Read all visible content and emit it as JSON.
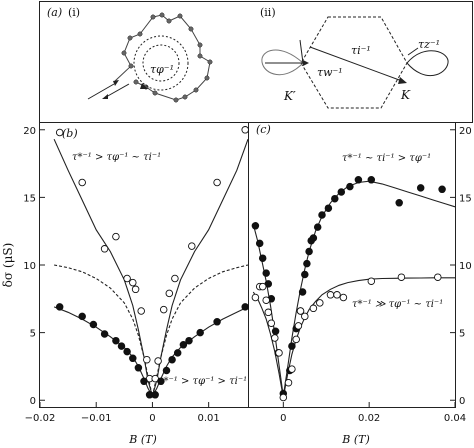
{
  "figure": {
    "panel_a_label": "(a)",
    "panel_a_i": "(i)",
    "panel_a_ii": "(ii)",
    "panel_b_label": "(b)",
    "panel_c_label": "(c)",
    "tau_phi_label": "τφ⁻¹",
    "tau_w_label": "τw⁻¹",
    "tau_i_label": "τi⁻¹",
    "tau_z_label": "τz⁻¹",
    "K_prime_label": "K′",
    "K_label": "K",
    "ylabel": "δσ (μS)",
    "xlabel_b": "B (T)",
    "xlabel_c": "B (T)",
    "b_top_annotation": "τ*⁻¹ > τφ⁻¹ ~ τi⁻¹",
    "b_bottom_annotation": "τ*⁻¹ > τφ⁻¹ > τi⁻¹",
    "c_top_annotation": "τ*⁻¹ ~ τi⁻¹ > τφ⁻¹",
    "c_bottom_annotation": "τ*⁻¹ ≫ τφ⁻¹ ~ τi⁻¹"
  },
  "chart_data": [
    {
      "panel": "(b)",
      "type": "scatter",
      "xlabel": "B (T)",
      "ylabel": "δσ (μS)",
      "xlim": [
        -0.02,
        0.017
      ],
      "ylim": [
        -0.5,
        20.5
      ],
      "xticks": [
        -0.02,
        -0.01,
        0,
        0.01
      ],
      "xtick_labels": [
        "−0.02",
        "−0.01",
        "0",
        "0.01"
      ],
      "yticks": [
        0,
        5,
        10,
        15,
        20
      ],
      "ytick_labels": [
        "0",
        "5",
        "10",
        "15",
        "20"
      ],
      "series": [
        {
          "marker": "open-circle",
          "points": [
            [
              -0.0165,
              19.8
            ],
            [
              -0.0125,
              16.1
            ],
            [
              -0.0085,
              11.2
            ],
            [
              -0.0065,
              12.1
            ],
            [
              -0.0045,
              9.0
            ],
            [
              -0.0035,
              8.7
            ],
            [
              -0.003,
              8.2
            ],
            [
              -0.002,
              6.6
            ],
            [
              -0.001,
              3.0
            ],
            [
              -0.0005,
              1.6
            ],
            [
              0.0005,
              1.6
            ],
            [
              0.001,
              2.9
            ],
            [
              0.002,
              6.7
            ],
            [
              0.003,
              7.9
            ],
            [
              0.004,
              9.0
            ],
            [
              0.007,
              11.4
            ],
            [
              0.0115,
              16.1
            ],
            [
              0.0165,
              20.0
            ]
          ]
        },
        {
          "marker": "filled-circle",
          "points": [
            [
              -0.0165,
              6.9
            ],
            [
              -0.0125,
              6.2
            ],
            [
              -0.0105,
              5.6
            ],
            [
              -0.0085,
              4.9
            ],
            [
              -0.0065,
              4.4
            ],
            [
              -0.0055,
              4.0
            ],
            [
              -0.0045,
              3.6
            ],
            [
              -0.0035,
              3.1
            ],
            [
              -0.0025,
              2.4
            ],
            [
              -0.0015,
              1.4
            ],
            [
              -0.0005,
              0.4
            ],
            [
              0.0005,
              0.4
            ],
            [
              0.0015,
              1.4
            ],
            [
              0.0025,
              2.2
            ],
            [
              0.0035,
              3.0
            ],
            [
              0.0045,
              3.5
            ],
            [
              0.0055,
              4.1
            ],
            [
              0.0065,
              4.4
            ],
            [
              0.0085,
              5.0
            ],
            [
              0.0115,
              5.8
            ],
            [
              0.0165,
              6.9
            ]
          ]
        }
      ],
      "curves": [
        {
          "style": "solid",
          "x": [
            -0.0175,
            -0.015,
            -0.0125,
            -0.01,
            -0.0075,
            -0.005,
            -0.0035,
            -0.0025,
            -0.0015,
            -0.0008,
            0,
            0.0008,
            0.0015,
            0.0025,
            0.0035,
            0.005,
            0.0075,
            0.01,
            0.0125,
            0.015,
            0.017
          ],
          "y": [
            19.3,
            17.0,
            14.8,
            12.6,
            11.0,
            8.9,
            7.0,
            5.2,
            3.2,
            1.5,
            0.3,
            1.5,
            3.2,
            5.2,
            7.0,
            8.9,
            11.0,
            12.6,
            14.8,
            17.0,
            19.3
          ]
        },
        {
          "style": "solid",
          "x": [
            -0.0175,
            -0.015,
            -0.0125,
            -0.01,
            -0.0075,
            -0.005,
            -0.0035,
            -0.0025,
            -0.0015,
            -0.0008,
            0,
            0.0008,
            0.0015,
            0.0025,
            0.0035,
            0.005,
            0.0075,
            0.01,
            0.0125,
            0.015,
            0.017
          ],
          "y": [
            6.9,
            6.5,
            6.0,
            5.4,
            4.7,
            3.9,
            3.2,
            2.5,
            1.6,
            0.9,
            0.3,
            0.9,
            1.6,
            2.5,
            3.2,
            3.9,
            4.7,
            5.4,
            6.0,
            6.5,
            6.9
          ]
        },
        {
          "style": "dashed",
          "x": [
            -0.0175,
            -0.015,
            -0.0125,
            -0.01,
            -0.0075,
            -0.005,
            -0.0035,
            -0.0025,
            -0.0015,
            -0.0008,
            0,
            0.0008,
            0.0015,
            0.0025,
            0.0035,
            0.005,
            0.0075,
            0.01,
            0.0125,
            0.015,
            0.017
          ],
          "y": [
            10.0,
            9.8,
            9.5,
            9.0,
            8.3,
            7.2,
            6.0,
            4.8,
            3.2,
            1.8,
            0.3,
            1.8,
            3.2,
            4.8,
            6.0,
            7.2,
            8.3,
            9.0,
            9.5,
            9.8,
            10.0
          ]
        }
      ]
    },
    {
      "panel": "(c)",
      "type": "scatter",
      "xlabel": "B (T)",
      "ylabel": "δσ (μS)",
      "xlim": [
        -0.008,
        0.04
      ],
      "ylim": [
        -0.5,
        20.5
      ],
      "xticks": [
        0,
        0.02,
        0.04
      ],
      "xtick_labels": [
        "0",
        "0.02",
        "0.04"
      ],
      "yticks": [
        0,
        5,
        10,
        15,
        20
      ],
      "ytick_labels": [
        "0",
        "5",
        "10",
        "15",
        "20"
      ],
      "series": [
        {
          "marker": "filled-circle",
          "points": [
            [
              -0.0065,
              12.9
            ],
            [
              -0.0055,
              11.6
            ],
            [
              -0.0048,
              10.5
            ],
            [
              -0.004,
              9.4
            ],
            [
              -0.0035,
              8.6
            ],
            [
              -0.0028,
              7.5
            ],
            [
              -0.0018,
              5.1
            ],
            [
              -0.0012,
              3.5
            ],
            [
              0.0,
              0.5
            ],
            [
              0.0015,
              2.2
            ],
            [
              0.002,
              4.0
            ],
            [
              0.003,
              5.3
            ],
            [
              0.004,
              6.6
            ],
            [
              0.0045,
              8.0
            ],
            [
              0.005,
              9.3
            ],
            [
              0.0055,
              10.1
            ],
            [
              0.006,
              11.0
            ],
            [
              0.0065,
              11.8
            ],
            [
              0.007,
              12.0
            ],
            [
              0.008,
              12.8
            ],
            [
              0.009,
              13.7
            ],
            [
              0.0105,
              14.2
            ],
            [
              0.012,
              14.9
            ],
            [
              0.0135,
              15.4
            ],
            [
              0.0155,
              15.8
            ],
            [
              0.0175,
              16.3
            ],
            [
              0.0205,
              16.3
            ],
            [
              0.027,
              14.6
            ],
            [
              0.032,
              15.7
            ],
            [
              0.037,
              15.6
            ]
          ]
        },
        {
          "marker": "open-circle",
          "points": [
            [
              -0.0065,
              7.6
            ],
            [
              -0.0055,
              8.4
            ],
            [
              -0.0048,
              8.4
            ],
            [
              -0.004,
              7.4
            ],
            [
              -0.0035,
              6.5
            ],
            [
              -0.0028,
              5.7
            ],
            [
              -0.002,
              4.6
            ],
            [
              -0.001,
              3.5
            ],
            [
              0.0,
              0.2
            ],
            [
              0.0012,
              1.3
            ],
            [
              0.002,
              2.3
            ],
            [
              0.003,
              4.5
            ],
            [
              0.0035,
              5.5
            ],
            [
              0.004,
              6.6
            ],
            [
              0.005,
              6.2
            ],
            [
              0.007,
              6.8
            ],
            [
              0.0085,
              7.2
            ],
            [
              0.011,
              7.8
            ],
            [
              0.0125,
              7.8
            ],
            [
              0.014,
              7.6
            ],
            [
              0.0205,
              8.8
            ],
            [
              0.0275,
              9.1
            ],
            [
              0.036,
              9.1
            ]
          ]
        }
      ],
      "curves": [
        {
          "style": "solid",
          "x": [
            -0.007,
            -0.006,
            -0.005,
            -0.004,
            -0.003,
            -0.002,
            -0.001,
            0,
            0.001,
            0.002,
            0.003,
            0.004,
            0.005,
            0.006,
            0.0075,
            0.009,
            0.011,
            0.013,
            0.015,
            0.0175,
            0.02,
            0.023,
            0.026,
            0.029,
            0.032,
            0.035,
            0.038,
            0.04
          ],
          "y": [
            13.0,
            11.8,
            10.3,
            8.8,
            7.0,
            4.9,
            2.6,
            0.3,
            2.4,
            4.6,
            6.5,
            8.2,
            9.7,
            11.0,
            12.5,
            13.6,
            14.6,
            15.3,
            15.8,
            16.1,
            16.2,
            16.0,
            15.7,
            15.4,
            15.1,
            14.8,
            14.5,
            14.3
          ]
        },
        {
          "style": "solid",
          "x": [
            -0.007,
            -0.006,
            -0.005,
            -0.004,
            -0.003,
            -0.002,
            -0.001,
            0,
            0.001,
            0.002,
            0.003,
            0.004,
            0.005,
            0.006,
            0.0075,
            0.009,
            0.011,
            0.013,
            0.015,
            0.0175,
            0.02,
            0.023,
            0.026,
            0.029,
            0.032,
            0.035,
            0.038,
            0.04
          ],
          "y": [
            8.0,
            7.5,
            6.8,
            6.0,
            4.9,
            3.6,
            2.0,
            0.2,
            1.9,
            3.4,
            4.5,
            5.4,
            6.1,
            6.7,
            7.3,
            7.8,
            8.2,
            8.5,
            8.7,
            8.85,
            8.95,
            9.0,
            9.02,
            9.03,
            9.04,
            9.05,
            9.05,
            9.05
          ]
        }
      ]
    }
  ]
}
